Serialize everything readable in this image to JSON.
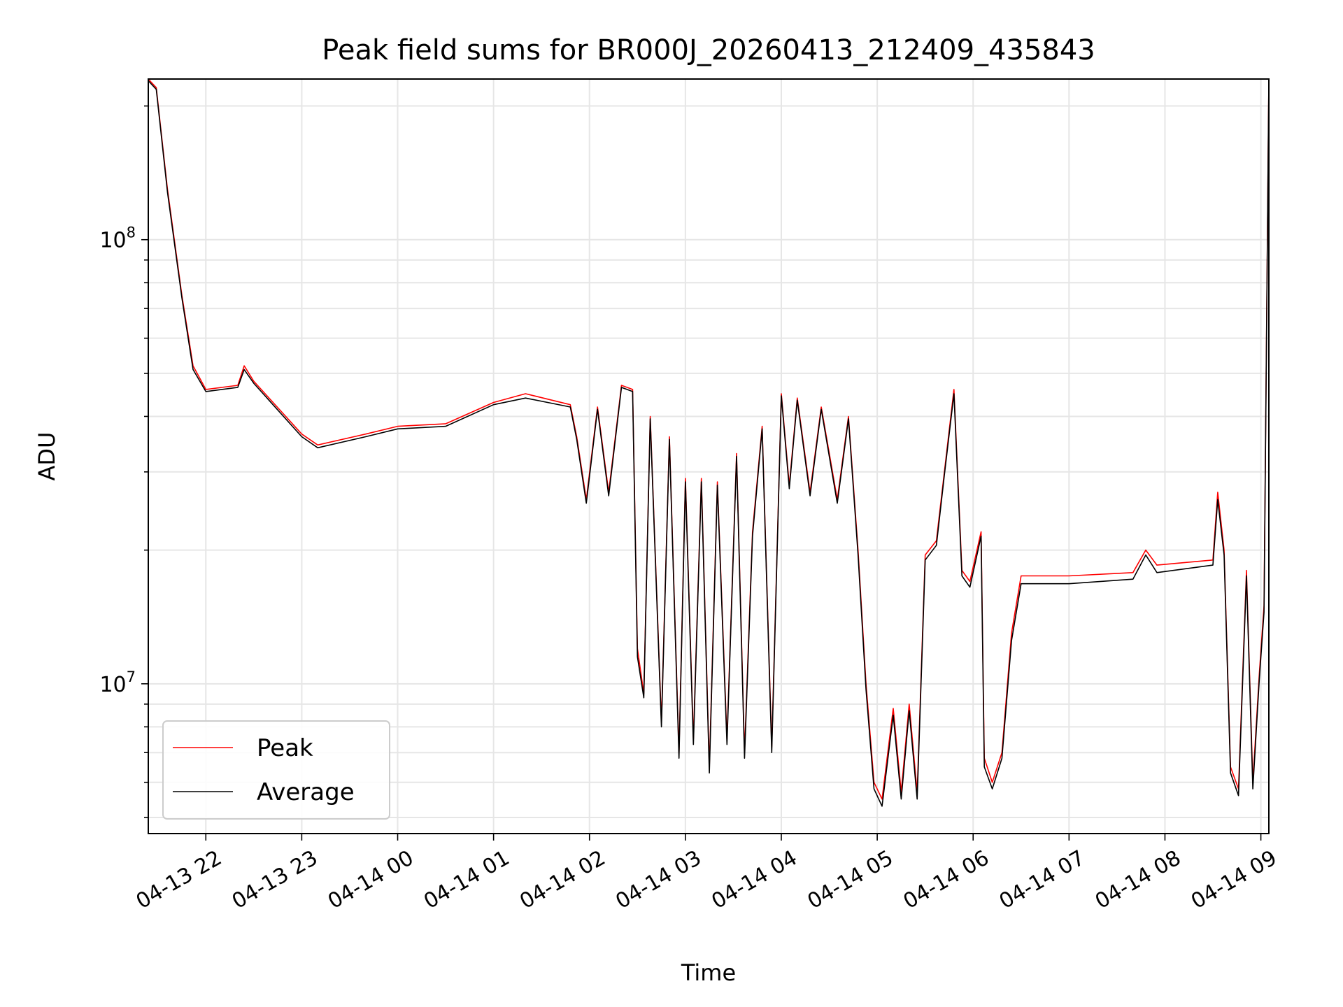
{
  "chart_data": {
    "type": "line",
    "title": "Peak field sums for BR000J_20260413_212409_435843",
    "xlabel": "Time",
    "ylabel": "ADU",
    "yscale": "log",
    "ylim": [
      4600000,
      230000000
    ],
    "xlim": [
      "2026-04-13 21:24",
      "2026-04-14 09:05"
    ],
    "x_ticks": [
      "04-13 22",
      "04-13 23",
      "04-14 00",
      "04-14 01",
      "04-14 02",
      "04-14 03",
      "04-14 04",
      "04-14 05",
      "04-14 06",
      "04-14 07",
      "04-14 08",
      "04-14 09"
    ],
    "x_tick_times": [
      "2026-04-13 22:00",
      "2026-04-13 23:00",
      "2026-04-14 00:00",
      "2026-04-14 01:00",
      "2026-04-14 02:00",
      "2026-04-14 03:00",
      "2026-04-14 04:00",
      "2026-04-14 05:00",
      "2026-04-14 06:00",
      "2026-04-14 07:00",
      "2026-04-14 08:00",
      "2026-04-14 09:00"
    ],
    "y_ticks": [
      {
        "base": "10",
        "exp": "7",
        "value": 10000000
      },
      {
        "base": "10",
        "exp": "8",
        "value": 100000000
      }
    ],
    "grid": true,
    "legend": "lower-left",
    "series": [
      {
        "name": "Peak",
        "color": "#ff0000",
        "points": [
          [
            "2026-04-13 21:24",
            230000000
          ],
          [
            "2026-04-13 21:29",
            220000000
          ],
          [
            "2026-04-13 21:36",
            130000000
          ],
          [
            "2026-04-13 21:45",
            75000000
          ],
          [
            "2026-04-13 21:52",
            52000000
          ],
          [
            "2026-04-13 22:00",
            46000000
          ],
          [
            "2026-04-13 22:20",
            47000000
          ],
          [
            "2026-04-13 22:24",
            52000000
          ],
          [
            "2026-04-13 22:30",
            48000000
          ],
          [
            "2026-04-13 23:00",
            36500000
          ],
          [
            "2026-04-13 23:10",
            34500000
          ],
          [
            "2026-04-13 23:40",
            36500000
          ],
          [
            "2026-04-14 00:00",
            38000000
          ],
          [
            "2026-04-14 00:30",
            38500000
          ],
          [
            "2026-04-14 01:00",
            43000000
          ],
          [
            "2026-04-14 01:20",
            45000000
          ],
          [
            "2026-04-14 01:48",
            42500000
          ],
          [
            "2026-04-14 01:52",
            36000000
          ],
          [
            "2026-04-14 01:58",
            26000000
          ],
          [
            "2026-04-14 02:05",
            42000000
          ],
          [
            "2026-04-14 02:12",
            27000000
          ],
          [
            "2026-04-14 02:20",
            47000000
          ],
          [
            "2026-04-14 02:27",
            46000000
          ],
          [
            "2026-04-14 02:30",
            12000000
          ],
          [
            "2026-04-14 02:34",
            9500000
          ],
          [
            "2026-04-14 02:38",
            40000000
          ],
          [
            "2026-04-14 02:45",
            8200000
          ],
          [
            "2026-04-14 02:50",
            36000000
          ],
          [
            "2026-04-14 02:56",
            7000000
          ],
          [
            "2026-04-14 03:00",
            29000000
          ],
          [
            "2026-04-14 03:05",
            7500000
          ],
          [
            "2026-04-14 03:10",
            29000000
          ],
          [
            "2026-04-14 03:15",
            6500000
          ],
          [
            "2026-04-14 03:20",
            28500000
          ],
          [
            "2026-04-14 03:26",
            7500000
          ],
          [
            "2026-04-14 03:32",
            33000000
          ],
          [
            "2026-04-14 03:37",
            7000000
          ],
          [
            "2026-04-14 03:42",
            22000000
          ],
          [
            "2026-04-14 03:48",
            38000000
          ],
          [
            "2026-04-14 03:54",
            7200000
          ],
          [
            "2026-04-14 04:00",
            45000000
          ],
          [
            "2026-04-14 04:05",
            28000000
          ],
          [
            "2026-04-14 04:10",
            44000000
          ],
          [
            "2026-04-14 04:18",
            27000000
          ],
          [
            "2026-04-14 04:25",
            42000000
          ],
          [
            "2026-04-14 04:35",
            26000000
          ],
          [
            "2026-04-14 04:42",
            40000000
          ],
          [
            "2026-04-14 04:48",
            20000000
          ],
          [
            "2026-04-14 04:53",
            10000000
          ],
          [
            "2026-04-14 04:58",
            6000000
          ],
          [
            "2026-04-14 05:03",
            5500000
          ],
          [
            "2026-04-14 05:10",
            8800000
          ],
          [
            "2026-04-14 05:15",
            5700000
          ],
          [
            "2026-04-14 05:20",
            9000000
          ],
          [
            "2026-04-14 05:25",
            5700000
          ],
          [
            "2026-04-14 05:30",
            19500000
          ],
          [
            "2026-04-14 05:37",
            21000000
          ],
          [
            "2026-04-14 05:42",
            30000000
          ],
          [
            "2026-04-14 05:48",
            46000000
          ],
          [
            "2026-04-14 05:53",
            18000000
          ],
          [
            "2026-04-14 05:58",
            17000000
          ],
          [
            "2026-04-14 06:05",
            22000000
          ],
          [
            "2026-04-14 06:07",
            6800000
          ],
          [
            "2026-04-14 06:12",
            6000000
          ],
          [
            "2026-04-14 06:18",
            7000000
          ],
          [
            "2026-04-14 06:24",
            13000000
          ],
          [
            "2026-04-14 06:30",
            17500000
          ],
          [
            "2026-04-14 07:00",
            17500000
          ],
          [
            "2026-04-14 07:40",
            17800000
          ],
          [
            "2026-04-14 07:48",
            20000000
          ],
          [
            "2026-04-14 07:55",
            18500000
          ],
          [
            "2026-04-14 08:30",
            19000000
          ],
          [
            "2026-04-14 08:33",
            27000000
          ],
          [
            "2026-04-14 08:37",
            20000000
          ],
          [
            "2026-04-14 08:41",
            6500000
          ],
          [
            "2026-04-14 08:46",
            5800000
          ],
          [
            "2026-04-14 08:51",
            18000000
          ],
          [
            "2026-04-14 08:55",
            6000000
          ],
          [
            "2026-04-14 08:59",
            10500000
          ],
          [
            "2026-04-14 09:02",
            15000000
          ],
          [
            "2026-04-14 09:05",
            230000000
          ]
        ]
      },
      {
        "name": "Average",
        "color": "#000000",
        "points": [
          [
            "2026-04-13 21:24",
            228000000
          ],
          [
            "2026-04-13 21:29",
            218000000
          ],
          [
            "2026-04-13 21:36",
            128000000
          ],
          [
            "2026-04-13 21:45",
            74000000
          ],
          [
            "2026-04-13 21:52",
            51000000
          ],
          [
            "2026-04-13 22:00",
            45500000
          ],
          [
            "2026-04-13 22:20",
            46500000
          ],
          [
            "2026-04-13 22:24",
            51000000
          ],
          [
            "2026-04-13 22:30",
            47500000
          ],
          [
            "2026-04-13 23:00",
            36000000
          ],
          [
            "2026-04-13 23:10",
            34000000
          ],
          [
            "2026-04-13 23:40",
            36000000
          ],
          [
            "2026-04-14 00:00",
            37500000
          ],
          [
            "2026-04-14 00:30",
            38000000
          ],
          [
            "2026-04-14 01:00",
            42500000
          ],
          [
            "2026-04-14 01:20",
            44000000
          ],
          [
            "2026-04-14 01:48",
            42000000
          ],
          [
            "2026-04-14 01:52",
            35500000
          ],
          [
            "2026-04-14 01:58",
            25500000
          ],
          [
            "2026-04-14 02:05",
            41500000
          ],
          [
            "2026-04-14 02:12",
            26500000
          ],
          [
            "2026-04-14 02:20",
            46500000
          ],
          [
            "2026-04-14 02:27",
            45500000
          ],
          [
            "2026-04-14 02:30",
            11500000
          ],
          [
            "2026-04-14 02:34",
            9300000
          ],
          [
            "2026-04-14 02:38",
            39500000
          ],
          [
            "2026-04-14 02:45",
            8000000
          ],
          [
            "2026-04-14 02:50",
            35500000
          ],
          [
            "2026-04-14 02:56",
            6800000
          ],
          [
            "2026-04-14 03:00",
            28500000
          ],
          [
            "2026-04-14 03:05",
            7300000
          ],
          [
            "2026-04-14 03:10",
            28500000
          ],
          [
            "2026-04-14 03:15",
            6300000
          ],
          [
            "2026-04-14 03:20",
            28000000
          ],
          [
            "2026-04-14 03:26",
            7300000
          ],
          [
            "2026-04-14 03:32",
            32500000
          ],
          [
            "2026-04-14 03:37",
            6800000
          ],
          [
            "2026-04-14 03:42",
            21500000
          ],
          [
            "2026-04-14 03:48",
            37500000
          ],
          [
            "2026-04-14 03:54",
            7000000
          ],
          [
            "2026-04-14 04:00",
            44500000
          ],
          [
            "2026-04-14 04:05",
            27500000
          ],
          [
            "2026-04-14 04:10",
            43500000
          ],
          [
            "2026-04-14 04:18",
            26500000
          ],
          [
            "2026-04-14 04:25",
            41500000
          ],
          [
            "2026-04-14 04:35",
            25500000
          ],
          [
            "2026-04-14 04:42",
            39500000
          ],
          [
            "2026-04-14 04:48",
            19500000
          ],
          [
            "2026-04-14 04:53",
            9700000
          ],
          [
            "2026-04-14 04:58",
            5800000
          ],
          [
            "2026-04-14 05:03",
            5300000
          ],
          [
            "2026-04-14 05:10",
            8500000
          ],
          [
            "2026-04-14 05:15",
            5500000
          ],
          [
            "2026-04-14 05:20",
            8700000
          ],
          [
            "2026-04-14 05:25",
            5500000
          ],
          [
            "2026-04-14 05:30",
            19000000
          ],
          [
            "2026-04-14 05:37",
            20500000
          ],
          [
            "2026-04-14 05:42",
            29500000
          ],
          [
            "2026-04-14 05:48",
            45000000
          ],
          [
            "2026-04-14 05:53",
            17500000
          ],
          [
            "2026-04-14 05:58",
            16500000
          ],
          [
            "2026-04-14 06:05",
            21500000
          ],
          [
            "2026-04-14 06:07",
            6500000
          ],
          [
            "2026-04-14 06:12",
            5800000
          ],
          [
            "2026-04-14 06:18",
            6800000
          ],
          [
            "2026-04-14 06:24",
            12500000
          ],
          [
            "2026-04-14 06:30",
            16800000
          ],
          [
            "2026-04-14 07:00",
            16800000
          ],
          [
            "2026-04-14 07:40",
            17200000
          ],
          [
            "2026-04-14 07:48",
            19500000
          ],
          [
            "2026-04-14 07:55",
            17800000
          ],
          [
            "2026-04-14 08:30",
            18500000
          ],
          [
            "2026-04-14 08:33",
            26000000
          ],
          [
            "2026-04-14 08:37",
            19500000
          ],
          [
            "2026-04-14 08:41",
            6300000
          ],
          [
            "2026-04-14 08:46",
            5600000
          ],
          [
            "2026-04-14 08:51",
            17500000
          ],
          [
            "2026-04-14 08:55",
            5800000
          ],
          [
            "2026-04-14 08:59",
            10200000
          ],
          [
            "2026-04-14 09:02",
            14500000
          ],
          [
            "2026-04-14 09:05",
            228000000
          ]
        ]
      }
    ]
  }
}
